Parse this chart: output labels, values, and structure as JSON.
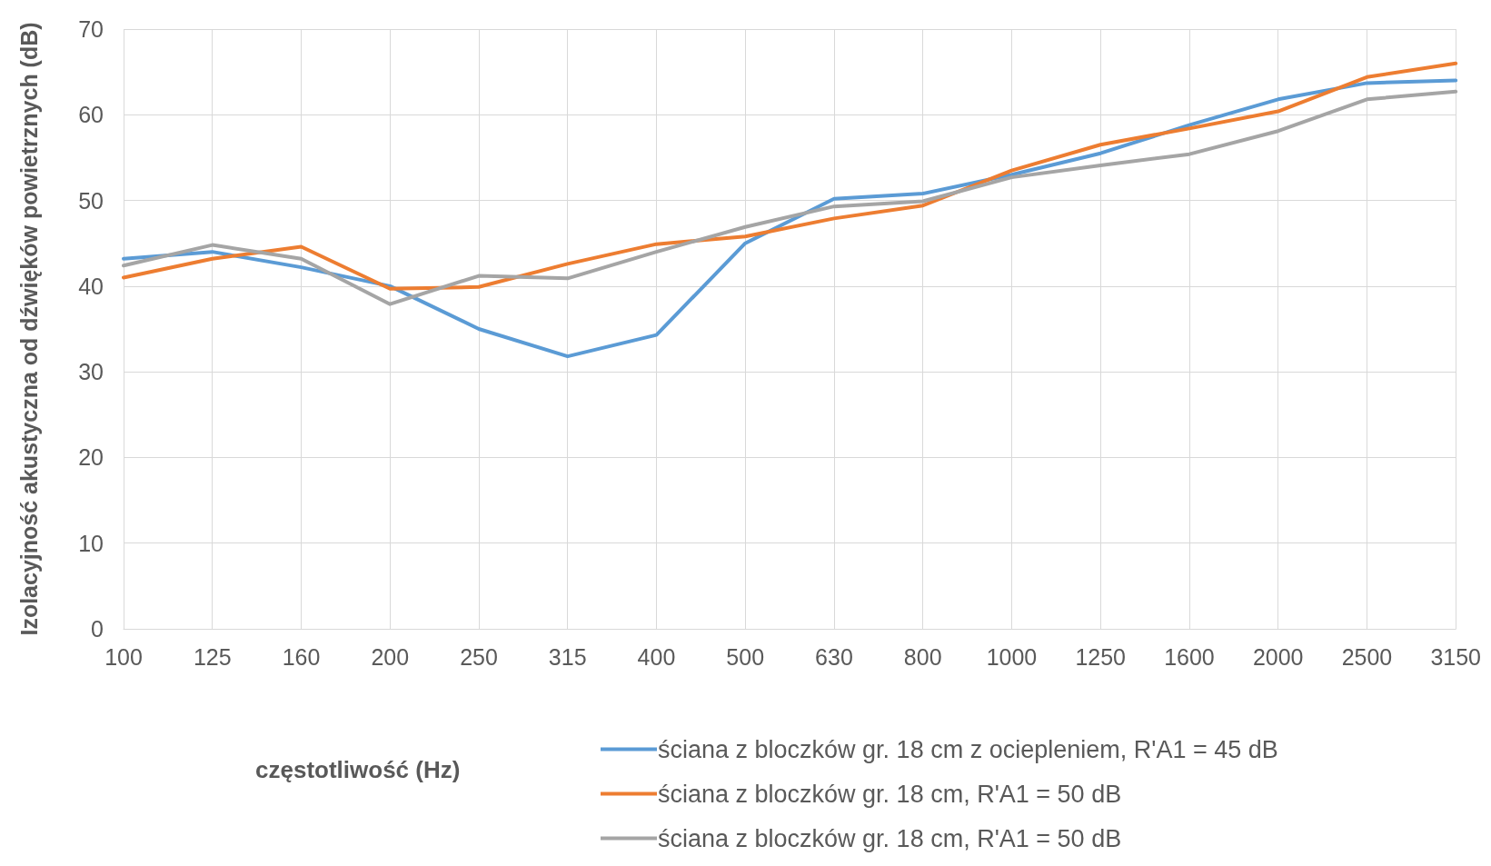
{
  "chart_data": {
    "type": "line",
    "xlabel": "częstotliwość (Hz)",
    "ylabel": "Izolacyjność akustyczna od dźwięków powietrznych (dB)",
    "categories": [
      "100",
      "125",
      "160",
      "200",
      "250",
      "315",
      "400",
      "500",
      "630",
      "800",
      "1000",
      "1250",
      "1600",
      "2000",
      "2500",
      "3150"
    ],
    "ylim": [
      0,
      70
    ],
    "yticks": [
      0,
      10,
      20,
      30,
      40,
      50,
      60,
      70
    ],
    "grid": true,
    "legend": "bottom",
    "marker": "none",
    "line_style": "solid",
    "series": [
      {
        "name": "ściana z bloczków gr. 18 cm z ociepleniem, R'A1 = 45 dB",
        "color": "#5b9bd5",
        "values": [
          43.2,
          44,
          42.2,
          40,
          35,
          31.8,
          34.3,
          45,
          50.2,
          50.8,
          53,
          55.5,
          58.8,
          61.8,
          63.7,
          64
        ]
      },
      {
        "name": "ściana z bloczków gr. 18 cm, R'A1 = 50 dB",
        "color": "#ed7d31",
        "values": [
          41,
          43.2,
          44.6,
          39.7,
          39.9,
          42.6,
          44.9,
          45.8,
          47.9,
          49.4,
          53.5,
          56.5,
          58.4,
          60.4,
          64.4,
          66
        ]
      },
      {
        "name": "ściana z bloczków gr. 18 cm, R'A1 = 50 dB",
        "color": "#a5a5a5",
        "values": [
          42.4,
          44.8,
          43.2,
          37.9,
          41.2,
          40.9,
          44,
          46.9,
          49.3,
          49.9,
          52.7,
          54.1,
          55.4,
          58.1,
          61.8,
          62.7
        ]
      }
    ]
  }
}
